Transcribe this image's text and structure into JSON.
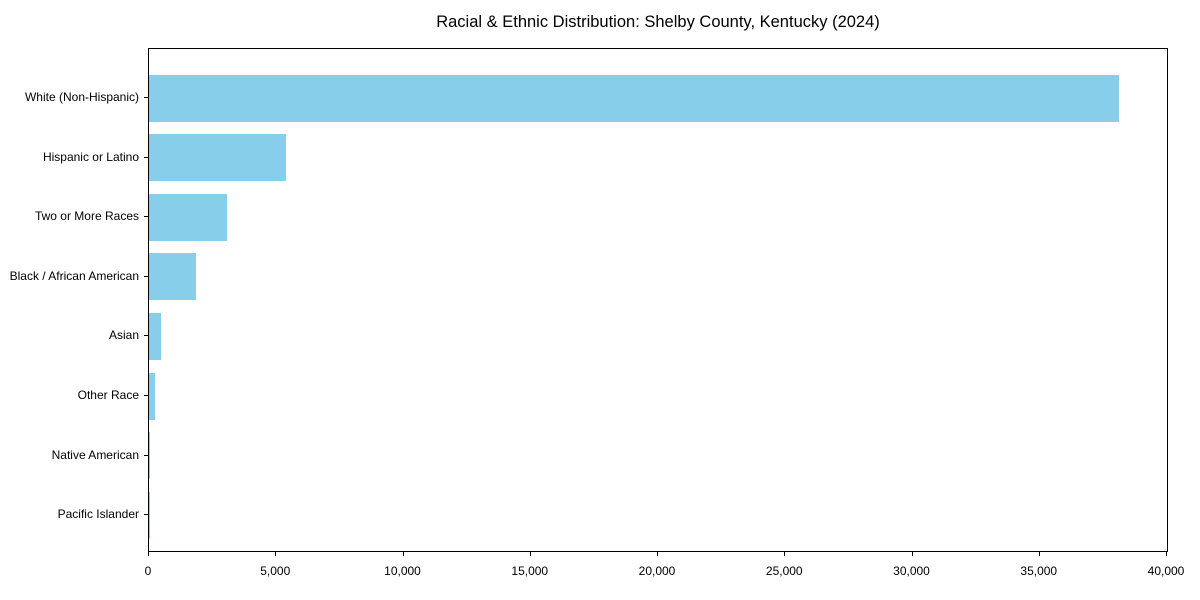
{
  "title": "Racial & Ethnic Distribution: Shelby County, Kentucky (2024)",
  "colors": {
    "bar": "#87CEEB",
    "axis": "#000000",
    "background": "#FFFFFF",
    "title_text": "#000000"
  },
  "chart_data": {
    "type": "bar",
    "orientation": "horizontal",
    "title": "Racial & Ethnic Distribution: Shelby County, Kentucky (2024)",
    "categories": [
      "White (Non-Hispanic)",
      "Hispanic or Latino",
      "Two or More Races",
      "Black / African American",
      "Asian",
      "Other Race",
      "Native American",
      "Pacific Islander"
    ],
    "values": [
      38100,
      5400,
      3050,
      1850,
      470,
      220,
      50,
      10
    ],
    "xlabel": "",
    "ylabel": "",
    "xlim": [
      0,
      40000
    ],
    "x_ticks": [
      0,
      5000,
      10000,
      15000,
      20000,
      25000,
      30000,
      35000,
      40000
    ],
    "x_tick_labels": [
      "0",
      "5,000",
      "10,000",
      "15,000",
      "20,000",
      "25,000",
      "30,000",
      "35,000",
      "40,000"
    ],
    "grid": false,
    "legend": false,
    "bar_color": "#87CEEB"
  }
}
